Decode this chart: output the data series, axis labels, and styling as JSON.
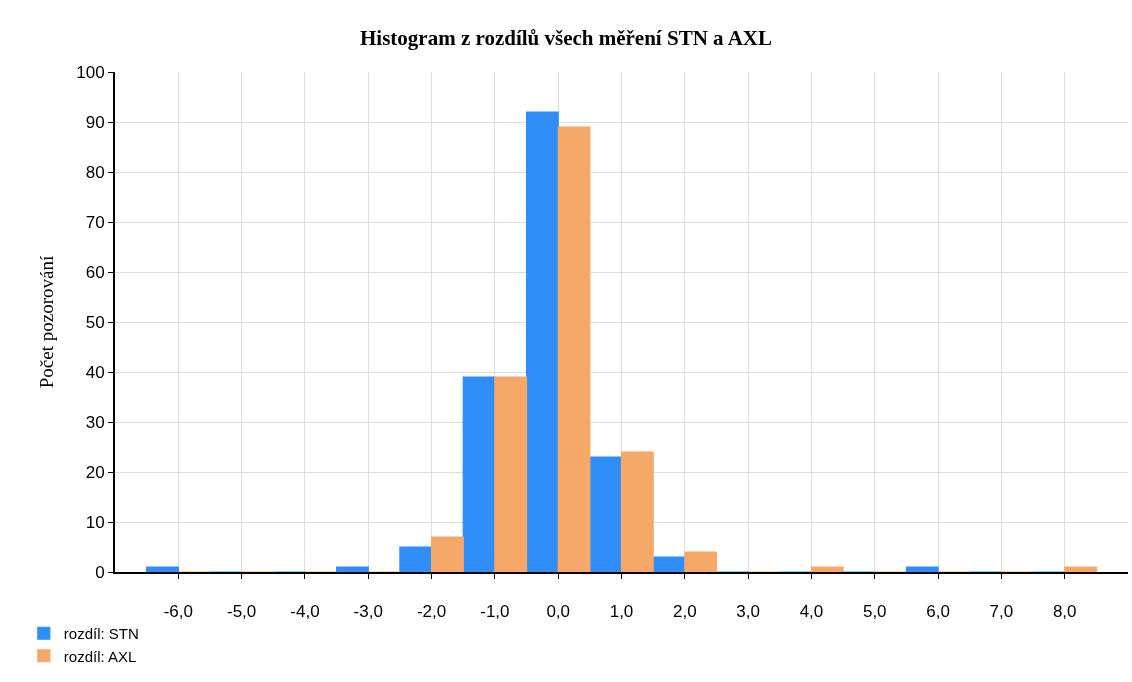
{
  "chart_data": {
    "type": "histogram",
    "title": "Histogram z rozdílů všech měření STN a AXL",
    "ylabel": "Počet pozorování",
    "bins": [
      -6.5,
      -5.5,
      -4.5,
      -3.5,
      -2.5,
      -1.5,
      -0.5,
      0.5,
      1.5,
      2.5,
      3.5,
      4.5,
      5.5,
      6.5,
      7.5,
      8.5
    ],
    "series": [
      {
        "name": "rozdíl: STN",
        "color": "#2f8ef7",
        "values": [
          1,
          0,
          0,
          1,
          5,
          39,
          92,
          23,
          3,
          0,
          0,
          0,
          1,
          0,
          0
        ]
      },
      {
        "name": "rozdíl: AXL",
        "color": "#f6a868",
        "values": [
          0,
          0,
          0,
          0,
          7,
          39,
          89,
          24,
          4,
          0,
          1,
          0,
          0,
          0,
          1
        ]
      }
    ],
    "xlim": [
      -7,
      9
    ],
    "xticks": [
      {
        "value": -6,
        "label": "-6,0"
      },
      {
        "value": -5,
        "label": "-5,0"
      },
      {
        "value": -4,
        "label": "-4,0"
      },
      {
        "value": -3,
        "label": "-3,0"
      },
      {
        "value": -2,
        "label": "-2,0"
      },
      {
        "value": -1,
        "label": "-1,0"
      },
      {
        "value": 0,
        "label": "0,0"
      },
      {
        "value": 1,
        "label": "1,0"
      },
      {
        "value": 2,
        "label": "2,0"
      },
      {
        "value": 3,
        "label": "3,0"
      },
      {
        "value": 4,
        "label": "4,0"
      },
      {
        "value": 5,
        "label": "5,0"
      },
      {
        "value": 6,
        "label": "6,0"
      },
      {
        "value": 7,
        "label": "7,0"
      },
      {
        "value": 8,
        "label": "8,0"
      }
    ],
    "ylim": [
      0,
      100
    ],
    "yticks": [
      0,
      10,
      20,
      30,
      40,
      50,
      60,
      70,
      80,
      90,
      100
    ],
    "grid": true,
    "legend": "bottom left"
  }
}
